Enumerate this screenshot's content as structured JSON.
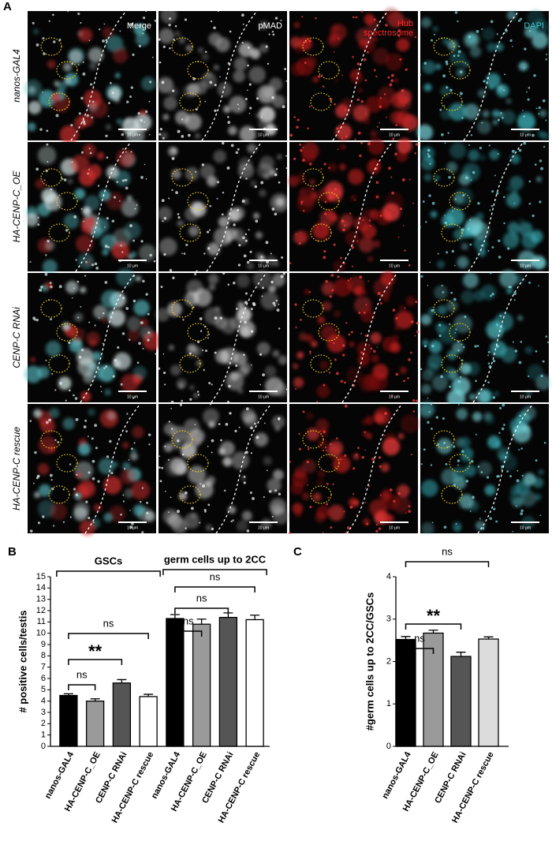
{
  "panel_a": {
    "label": "A",
    "channel_labels": [
      "Merge",
      "pMAD",
      "Hub",
      "spectrosome",
      "DAPI"
    ],
    "genotypes": [
      "nanos-GAL4",
      "HA-CENP-C_OE",
      "CENP-C RNAi",
      "HA-CENP-C rescue"
    ],
    "scale_bar": "10 μm"
  },
  "chart_data": [
    {
      "type": "bar",
      "panel": "B",
      "y_label": "# positive cells/testis",
      "categories": [
        "nanos-GAL4",
        "HA-CENP-C_OE",
        "CENP-C RNAi",
        "HA-CENP-C rescue",
        "nanos-GAL4",
        "HA-CENP-C_OE",
        "CENP-C RNAi",
        "HA-CENP-C rescue"
      ],
      "values": [
        4.5,
        4.0,
        5.6,
        4.4,
        11.3,
        10.8,
        11.4,
        11.2
      ],
      "errors": [
        0.15,
        0.2,
        0.3,
        0.2,
        0.35,
        0.45,
        0.4,
        0.4
      ],
      "colors": [
        "#000000",
        "#9a9a9a",
        "#555555",
        "#ffffff",
        "#000000",
        "#9a9a9a",
        "#555555",
        "#ffffff"
      ],
      "ylim": [
        0,
        15
      ],
      "yticks": [
        0,
        1,
        2,
        3,
        4,
        5,
        6,
        7,
        8,
        9,
        10,
        11,
        12,
        13,
        14,
        15
      ],
      "groups": [
        {
          "label": "GSCs",
          "bars": [
            0,
            3
          ]
        },
        {
          "label": "germ cells up to 2CC",
          "bars": [
            4,
            7
          ]
        }
      ],
      "comparisons": [
        {
          "label": "ns",
          "bars": [
            0,
            1
          ]
        },
        {
          "label": "**",
          "bars": [
            0,
            2
          ]
        },
        {
          "label": "ns",
          "bars": [
            0,
            3
          ]
        },
        {
          "label": "ns",
          "bars": [
            4,
            5
          ]
        },
        {
          "label": "ns",
          "bars": [
            4,
            6
          ]
        },
        {
          "label": "ns",
          "bars": [
            4,
            7
          ]
        }
      ]
    },
    {
      "type": "bar",
      "panel": "C",
      "y_label": "#germ cells up to 2CC/GSCs",
      "categories": [
        "nanos-GAL4",
        "HA-CENP-C_OE",
        "CENP-C RNAi",
        "HA-CENP-C rescue"
      ],
      "values": [
        2.52,
        2.67,
        2.12,
        2.53
      ],
      "errors": [
        0.07,
        0.07,
        0.1,
        0.05
      ],
      "colors": [
        "#000000",
        "#9a9a9a",
        "#555555",
        "#dcdcdc"
      ],
      "ylim": [
        0,
        4
      ],
      "yticks": [
        0,
        1,
        2,
        3,
        4
      ],
      "comparisons": [
        {
          "label": "ns",
          "bars": [
            0,
            1
          ]
        },
        {
          "label": "**",
          "bars": [
            0,
            2
          ]
        },
        {
          "label": "ns",
          "bars": [
            0,
            3
          ]
        }
      ]
    }
  ]
}
